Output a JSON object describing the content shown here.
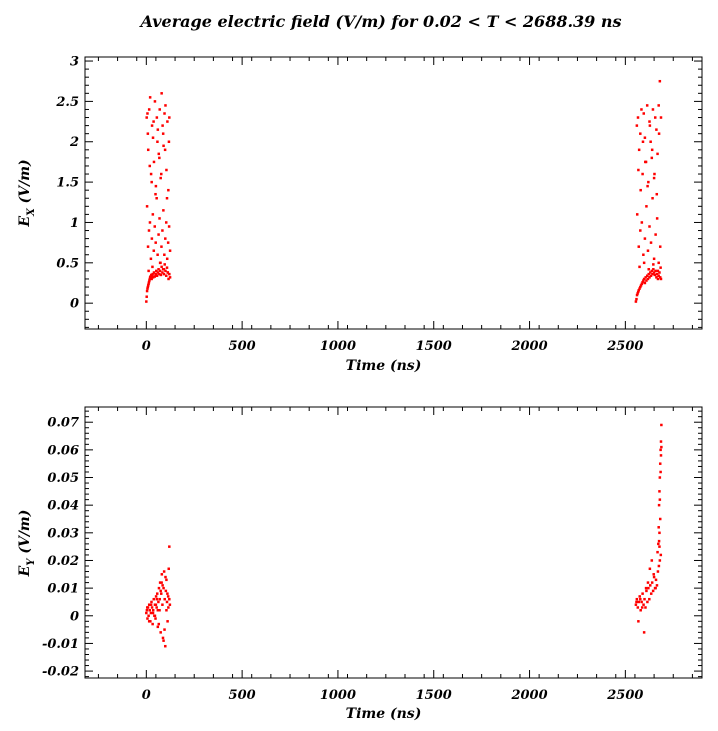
{
  "title": "Average electric field (V/m) for 0.02 < T < 2688.39 ns",
  "chart_data": [
    {
      "type": "scatter",
      "xlabel": "Time (ns)",
      "ylabel": "E_X (V/m)",
      "ylabel_main": "E",
      "ylabel_sub": "X",
      "ylabel_unit": " (V/m)",
      "xlim": [
        -320,
        2900
      ],
      "ylim": [
        -0.32,
        3.05
      ],
      "x_ticks": [
        0,
        500,
        1000,
        1500,
        2000,
        2500
      ],
      "x_tick_labels": [
        "0",
        "500",
        "1000",
        "1500",
        "2000",
        "2500"
      ],
      "y_ticks": [
        0,
        0.5,
        1,
        1.5,
        2,
        2.5,
        3
      ],
      "y_tick_labels": [
        "0",
        "0.5",
        "1",
        "1.5",
        "2",
        "2.5",
        "3"
      ],
      "marker_color": "#ff0000",
      "series": [
        {
          "x": [
            0,
            2,
            4,
            6,
            8,
            10,
            12,
            14,
            16,
            18,
            20,
            22,
            24,
            26,
            28,
            30,
            33,
            36,
            40,
            44,
            48,
            52,
            56,
            60,
            64,
            68,
            72,
            76,
            80,
            84,
            88,
            92,
            96,
            100,
            104,
            108,
            112,
            116,
            120,
            124,
            2,
            6,
            10,
            15,
            20,
            25,
            30,
            35,
            40,
            45,
            50,
            55,
            60,
            65,
            70,
            75,
            80,
            85,
            90,
            95,
            100,
            105,
            110,
            115,
            120,
            4,
            9,
            14,
            19,
            24,
            29,
            34,
            39,
            44,
            49,
            54,
            59,
            64,
            69,
            74,
            79,
            84,
            89,
            94,
            99,
            104,
            109,
            114,
            119,
            124,
            8,
            18,
            28,
            38,
            48,
            58,
            68,
            78,
            88,
            98,
            108,
            118,
            12,
            32,
            52,
            72,
            92,
            112,
            2555,
            2558,
            2561,
            2564,
            2567,
            2570,
            2574,
            2578,
            2582,
            2586,
            2590,
            2594,
            2598,
            2602,
            2606,
            2610,
            2614,
            2618,
            2622,
            2626,
            2630,
            2634,
            2638,
            2642,
            2646,
            2650,
            2654,
            2658,
            2662,
            2666,
            2670,
            2674,
            2678,
            2682,
            2686,
            2560,
            2566,
            2572,
            2578,
            2584,
            2590,
            2596,
            2602,
            2608,
            2614,
            2620,
            2626,
            2632,
            2638,
            2644,
            2650,
            2656,
            2662,
            2668,
            2674,
            2680,
            2686,
            2562,
            2570,
            2578,
            2586,
            2594,
            2602,
            2610,
            2618,
            2626,
            2634,
            2642,
            2650,
            2658,
            2666,
            2674,
            2682,
            2568,
            2580,
            2592,
            2604,
            2616,
            2628,
            2640,
            2652,
            2664,
            2676,
            2574,
            2598,
            2622,
            2646,
            2670,
            2684
          ],
          "y": [
            0.02,
            0.08,
            0.15,
            0.18,
            0.2,
            0.22,
            0.24,
            0.26,
            0.28,
            0.3,
            0.32,
            0.33,
            0.31,
            0.35,
            0.3,
            0.34,
            0.36,
            0.32,
            0.38,
            0.33,
            0.36,
            0.4,
            0.34,
            0.38,
            0.42,
            0.36,
            0.4,
            0.35,
            0.45,
            0.38,
            0.42,
            0.36,
            0.48,
            0.4,
            0.34,
            0.44,
            0.38,
            0.3,
            0.36,
            0.32,
            2.3,
            2.35,
            1.9,
            2.4,
            2.55,
            1.6,
            2.2,
            2.05,
            1.75,
            2.5,
            1.45,
            2.3,
            2.15,
            1.85,
            2.4,
            1.55,
            2.6,
            2.2,
            1.95,
            2.35,
            2.45,
            1.65,
            2.25,
            1.4,
            2.3,
            1.2,
            0.7,
            0.9,
            1.0,
            0.55,
            0.8,
            1.1,
            0.65,
            0.95,
            0.75,
            1.3,
            0.6,
            0.85,
            1.05,
            0.5,
            0.7,
            0.9,
            1.15,
            0.6,
            0.8,
            1.0,
            0.55,
            0.75,
            0.95,
            0.65,
            2.1,
            1.7,
            1.5,
            2.25,
            1.35,
            2.0,
            1.8,
            1.6,
            2.1,
            1.9,
            1.3,
            2.0,
            0.4,
            0.45,
            0.35,
            0.5,
            0.42,
            0.38,
            0.02,
            0.05,
            0.1,
            0.12,
            0.14,
            0.16,
            0.18,
            0.2,
            0.22,
            0.24,
            0.26,
            0.28,
            0.3,
            0.25,
            0.32,
            0.28,
            0.34,
            0.3,
            0.36,
            0.32,
            0.38,
            0.34,
            0.4,
            0.36,
            0.42,
            0.38,
            0.35,
            0.4,
            0.32,
            0.36,
            0.3,
            0.34,
            0.38,
            0.32,
            0.3,
            2.2,
            2.3,
            1.9,
            2.1,
            2.4,
            1.6,
            2.35,
            2.05,
            1.75,
            2.45,
            1.5,
            2.25,
            2.0,
            1.8,
            2.4,
            1.55,
            2.3,
            2.15,
            1.85,
            2.45,
            2.75,
            2.3,
            1.1,
            0.7,
            0.9,
            1.0,
            0.6,
            0.8,
            1.2,
            0.65,
            0.95,
            0.75,
            1.3,
            0.55,
            0.85,
            1.05,
            0.5,
            0.7,
            1.65,
            1.4,
            2.0,
            1.75,
            1.45,
            2.2,
            1.9,
            1.6,
            1.35,
            2.1,
            0.45,
            0.5,
            0.42,
            0.48,
            0.4,
            0.44
          ]
        }
      ]
    },
    {
      "type": "scatter",
      "xlabel": "Time (ns)",
      "ylabel": "E_Y (V/m)",
      "ylabel_main": "E",
      "ylabel_sub": "Y",
      "ylabel_unit": " (V/m)",
      "xlim": [
        -320,
        2900
      ],
      "ylim": [
        -0.0225,
        0.0755
      ],
      "x_ticks": [
        0,
        500,
        1000,
        1500,
        2000,
        2500
      ],
      "x_tick_labels": [
        "0",
        "500",
        "1000",
        "1500",
        "2000",
        "2500"
      ],
      "y_ticks": [
        -0.02,
        -0.01,
        0,
        0.01,
        0.02,
        0.03,
        0.04,
        0.05,
        0.06,
        0.07
      ],
      "y_tick_labels": [
        "-0.02",
        "-0.01",
        "0",
        "0.01",
        "0.02",
        "0.03",
        "0.04",
        "0.05",
        "0.06",
        "0.07"
      ],
      "marker_color": "#ff0000",
      "series": [
        {
          "x": [
            0,
            3,
            6,
            9,
            12,
            15,
            18,
            21,
            24,
            27,
            30,
            33,
            36,
            39,
            42,
            45,
            48,
            51,
            54,
            57,
            60,
            63,
            66,
            69,
            72,
            75,
            78,
            81,
            84,
            87,
            90,
            93,
            96,
            99,
            102,
            105,
            108,
            111,
            114,
            117,
            120,
            123,
            5,
            15,
            25,
            35,
            45,
            55,
            65,
            75,
            85,
            95,
            105,
            115,
            120,
            110,
            100,
            90,
            80,
            70,
            60,
            50,
            2555,
            2560,
            2565,
            2570,
            2575,
            2580,
            2585,
            2590,
            2595,
            2600,
            2605,
            2610,
            2615,
            2620,
            2625,
            2630,
            2635,
            2640,
            2645,
            2650,
            2655,
            2660,
            2665,
            2670,
            2675,
            2680,
            2685,
            2558,
            2568,
            2578,
            2588,
            2598,
            2608,
            2618,
            2628,
            2638,
            2648,
            2658,
            2668,
            2678,
            2672,
            2674,
            2676,
            2678,
            2680,
            2682,
            2684,
            2686,
            2688,
            2676,
            2680,
            2684,
            2686,
            2688,
            2682,
            2678
          ],
          "y": [
            0.001,
            0.002,
            -0.001,
            0.003,
            0.0,
            0.004,
            0.002,
            -0.002,
            0.001,
            0.005,
            0.003,
            -0.003,
            0.002,
            0.006,
            0.0,
            0.004,
            -0.001,
            0.007,
            0.003,
            0.008,
            -0.004,
            0.005,
            0.01,
            0.002,
            0.012,
            -0.006,
            0.008,
            0.015,
            0.004,
            -0.008,
            0.01,
            0.016,
            0.006,
            -0.011,
            0.009,
            0.013,
            0.005,
            -0.002,
            0.007,
            0.017,
            0.025,
            0.004,
            0.003,
            -0.002,
            0.004,
            0.001,
            0.0,
            0.006,
            -0.003,
            0.009,
            0.011,
            -0.005,
            0.002,
            0.003,
            0.006,
            0.008,
            0.014,
            -0.009,
            0.012,
            0.006,
            0.002,
            0.004,
            0.004,
            0.006,
            0.003,
            0.005,
            0.007,
            0.002,
            0.005,
            0.008,
            0.004,
            0.006,
            0.003,
            0.009,
            0.005,
            0.01,
            0.006,
            0.011,
            0.008,
            0.012,
            0.009,
            0.014,
            0.01,
            0.013,
            0.011,
            0.016,
            0.018,
            0.02,
            0.022,
            0.005,
            -0.002,
            0.006,
            0.003,
            -0.006,
            0.01,
            0.012,
            0.017,
            0.02,
            0.015,
            0.01,
            0.023,
            0.025,
            0.026,
            0.032,
            0.04,
            0.045,
            0.05,
            0.055,
            0.06,
            0.063,
            0.069,
            0.027,
            0.042,
            0.052,
            0.058,
            0.061,
            0.035,
            0.03
          ]
        }
      ]
    }
  ]
}
